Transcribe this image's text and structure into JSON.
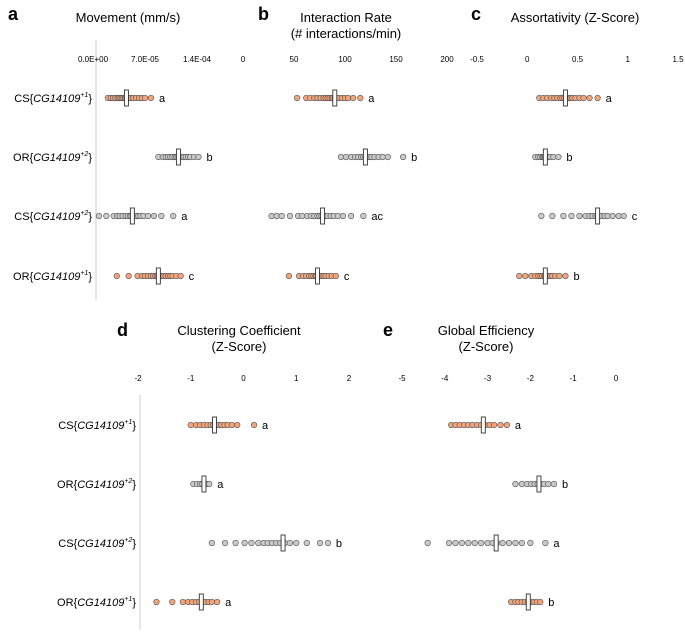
{
  "colors": {
    "orange": "#f0a57c",
    "gray": "#c9c9c9",
    "outline": "#555555",
    "axis": "#cccccc"
  },
  "row_labels": {
    "top": [
      {
        "prefix": "CS{",
        "gene": "CG14109",
        "sup": "+1",
        "suffix": "}"
      },
      {
        "prefix": "OR{",
        "gene": "CG14109",
        "sup": "+2",
        "suffix": "}"
      },
      {
        "prefix": "CS{",
        "gene": "CG14109",
        "sup": "+2",
        "suffix": "}"
      },
      {
        "prefix": "OR{",
        "gene": "CG14109",
        "sup": "+1",
        "suffix": "}"
      }
    ],
    "bottom": [
      {
        "prefix": "CS{",
        "gene": "CG14109",
        "sup": "+1",
        "suffix": "}"
      },
      {
        "prefix": "OR{",
        "gene": "CG14109",
        "sup": "+2",
        "suffix": "}"
      },
      {
        "prefix": "CS{",
        "gene": "CG14109",
        "sup": "+2",
        "suffix": "}"
      },
      {
        "prefix": "OR{",
        "gene": "CG14109",
        "sup": "+1",
        "suffix": "}"
      }
    ]
  },
  "chart_data": [
    {
      "panel": "a",
      "type": "scatter",
      "title": "Movement (mm/s)",
      "title2": "",
      "xlim": [
        0,
        0.00021
      ],
      "ticks": [
        0,
        7e-05,
        0.00014
      ],
      "tick_labels": [
        "0.0E+00",
        "7.0E-05",
        "1.4E-04"
      ],
      "series": [
        {
          "color": "orange",
          "mean": 4.5e-05,
          "letter": "a",
          "values": [
            2e-05,
            2.4e-05,
            2.7e-05,
            3e-05,
            3.3e-05,
            3.5e-05,
            3.7e-05,
            3.9e-05,
            4.1e-05,
            4.3e-05,
            4.4e-05,
            4.6e-05,
            4.8e-05,
            5.1e-05,
            5.4e-05,
            5.8e-05,
            6.2e-05,
            6.6e-05,
            7e-05,
            7.8e-05
          ]
        },
        {
          "color": "gray",
          "mean": 0.000115,
          "letter": "b",
          "values": [
            8.8e-05,
            9.4e-05,
            9.8e-05,
            0.000101,
            0.000104,
            0.000107,
            0.00011,
            0.000112,
            0.000114,
            0.000116,
            0.000119,
            0.000122,
            0.000125,
            0.000128,
            0.000131,
            0.000136,
            0.000142
          ]
        },
        {
          "color": "gray",
          "mean": 5.3e-05,
          "letter": "a",
          "values": [
            8e-06,
            1.8e-05,
            2.8e-05,
            3.3e-05,
            3.6e-05,
            4e-05,
            4.4e-05,
            4.7e-05,
            5e-05,
            5.2e-05,
            5.5e-05,
            5.8e-05,
            6.1e-05,
            6.4e-05,
            6.8e-05,
            7.4e-05,
            8.2e-05,
            9.2e-05,
            0.000108
          ]
        },
        {
          "color": "orange",
          "mean": 8.8e-05,
          "letter": "c",
          "values": [
            3.2e-05,
            4.8e-05,
            6e-05,
            6.6e-05,
            7e-05,
            7.4e-05,
            7.8e-05,
            8.1e-05,
            8.4e-05,
            8.6e-05,
            8.8e-05,
            9e-05,
            9.2e-05,
            9.5e-05,
            9.8e-05,
            0.000101,
            0.000104,
            0.000107,
            0.000112,
            0.000118
          ]
        }
      ]
    },
    {
      "panel": "b",
      "type": "scatter",
      "title": "Interaction Rate",
      "title2": "(# interactions/min)",
      "xlim": [
        0,
        200
      ],
      "ticks": [
        0,
        50,
        100,
        150,
        200
      ],
      "tick_labels": [
        "0",
        "50",
        "100",
        "150",
        "200"
      ],
      "series": [
        {
          "color": "orange",
          "mean": 90,
          "letter": "a",
          "values": [
            53,
            62,
            66,
            70,
            73,
            76,
            79,
            81,
            83,
            85,
            87,
            88,
            90,
            92,
            94,
            97,
            100,
            103,
            108,
            115
          ]
        },
        {
          "color": "gray",
          "mean": 120,
          "letter": "b",
          "values": [
            96,
            101,
            106,
            110,
            113,
            116,
            118,
            120,
            122,
            124,
            126,
            129,
            133,
            137,
            142,
            157
          ]
        },
        {
          "color": "gray",
          "mean": 78,
          "letter": "ac",
          "values": [
            28,
            33,
            38,
            46,
            54,
            58,
            63,
            67,
            70,
            73,
            75,
            77,
            79,
            81,
            83,
            86,
            89,
            93,
            98,
            106,
            118
          ]
        },
        {
          "color": "orange",
          "mean": 73,
          "letter": "c",
          "values": [
            45,
            55,
            59,
            62,
            65,
            67,
            69,
            71,
            72,
            74,
            75,
            77,
            79,
            81,
            84,
            87,
            91
          ]
        }
      ]
    },
    {
      "panel": "c",
      "type": "scatter",
      "title": "Assortativity (Z-Score)",
      "title2": "",
      "xlim": [
        -0.5,
        1.5
      ],
      "ticks": [
        -0.5,
        0,
        0.5,
        1,
        1.5
      ],
      "tick_labels": [
        "-0.5",
        "0",
        "0.5",
        "1",
        "1.5"
      ],
      "series": [
        {
          "color": "orange",
          "mean": 0.38,
          "letter": "a",
          "values": [
            0.12,
            0.16,
            0.2,
            0.24,
            0.27,
            0.3,
            0.33,
            0.35,
            0.37,
            0.39,
            0.41,
            0.43,
            0.45,
            0.48,
            0.52,
            0.56,
            0.62,
            0.7
          ]
        },
        {
          "color": "gray",
          "mean": 0.18,
          "letter": "b",
          "values": [
            0.08,
            0.11,
            0.13,
            0.15,
            0.16,
            0.17,
            0.18,
            0.19,
            0.2,
            0.21,
            0.23,
            0.26,
            0.31
          ]
        },
        {
          "color": "gray",
          "mean": 0.7,
          "letter": "c",
          "values": [
            0.14,
            0.25,
            0.36,
            0.44,
            0.52,
            0.58,
            0.62,
            0.65,
            0.68,
            0.7,
            0.72,
            0.74,
            0.77,
            0.8,
            0.85,
            0.91,
            0.96
          ]
        },
        {
          "color": "orange",
          "mean": 0.18,
          "letter": "b",
          "values": [
            -0.08,
            -0.02,
            0.04,
            0.08,
            0.11,
            0.13,
            0.15,
            0.17,
            0.18,
            0.19,
            0.21,
            0.23,
            0.25,
            0.28,
            0.32,
            0.38
          ]
        }
      ]
    },
    {
      "panel": "d",
      "type": "scatter",
      "title": "Clustering Coefficient",
      "title2": "(Z-Score)",
      "xlim": [
        -2,
        2
      ],
      "ticks": [
        -2,
        -1,
        0,
        1,
        2
      ],
      "tick_labels": [
        "-2",
        "-1",
        "0",
        "1",
        "2"
      ],
      "series": [
        {
          "color": "orange",
          "mean": -0.55,
          "letter": "a",
          "values": [
            -1.0,
            -0.9,
            -0.82,
            -0.75,
            -0.68,
            -0.62,
            -0.57,
            -0.52,
            -0.47,
            -0.42,
            -0.36,
            -0.3,
            -0.22,
            -0.12,
            0.2
          ]
        },
        {
          "color": "gray",
          "mean": -0.75,
          "letter": "a",
          "values": [
            -0.95,
            -0.88,
            -0.82,
            -0.78,
            -0.74,
            -0.7,
            -0.65
          ]
        },
        {
          "color": "gray",
          "mean": 0.75,
          "letter": "b",
          "values": [
            -0.6,
            -0.35,
            -0.15,
            0.02,
            0.15,
            0.28,
            0.38,
            0.46,
            0.54,
            0.62,
            0.7,
            0.78,
            0.88,
            1.0,
            1.2,
            1.45,
            1.6
          ]
        },
        {
          "color": "orange",
          "mean": -0.8,
          "letter": "a",
          "values": [
            -1.65,
            -1.35,
            -1.15,
            -1.05,
            -0.97,
            -0.9,
            -0.84,
            -0.78,
            -0.72,
            -0.66,
            -0.6,
            -0.5
          ]
        }
      ]
    },
    {
      "panel": "e",
      "type": "scatter",
      "title": "Global Efficiency",
      "title2": "(Z-Score)",
      "xlim": [
        -5,
        0
      ],
      "ticks": [
        -5,
        -4,
        -3,
        -2,
        -1,
        0
      ],
      "tick_labels": [
        "-5",
        "-4",
        "-3",
        "-2",
        "-1",
        "0"
      ],
      "series": [
        {
          "color": "orange",
          "mean": -3.1,
          "letter": "a",
          "values": [
            -3.85,
            -3.75,
            -3.65,
            -3.55,
            -3.45,
            -3.35,
            -3.25,
            -3.15,
            -3.05,
            -2.95,
            -2.85,
            -2.7,
            -2.55
          ]
        },
        {
          "color": "gray",
          "mean": -1.8,
          "letter": "b",
          "values": [
            -2.35,
            -2.2,
            -2.08,
            -1.98,
            -1.9,
            -1.83,
            -1.76,
            -1.68,
            -1.58,
            -1.45
          ]
        },
        {
          "color": "gray",
          "mean": -2.8,
          "letter": "a",
          "values": [
            -4.4,
            -3.9,
            -3.75,
            -3.6,
            -3.45,
            -3.3,
            -3.15,
            -3.0,
            -2.88,
            -2.78,
            -2.65,
            -2.5,
            -2.35,
            -2.2,
            -2.0,
            -1.65
          ]
        },
        {
          "color": "orange",
          "mean": -2.05,
          "letter": "b",
          "values": [
            -2.45,
            -2.35,
            -2.28,
            -2.2,
            -2.13,
            -2.06,
            -1.99,
            -1.92,
            -1.85,
            -1.77
          ]
        }
      ]
    }
  ]
}
